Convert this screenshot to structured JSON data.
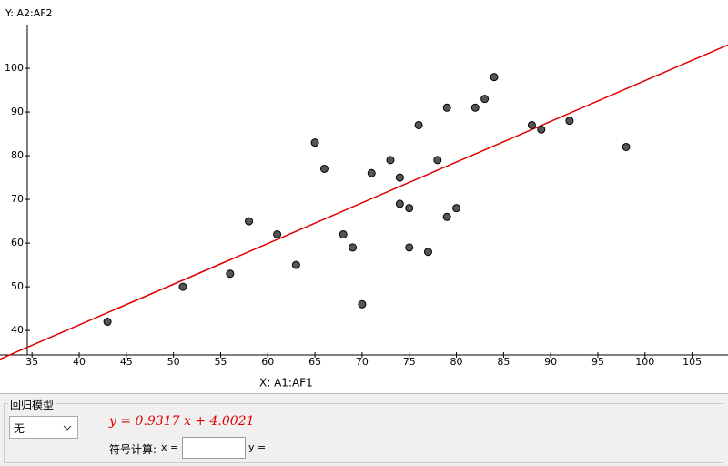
{
  "chart_data": {
    "type": "scatter",
    "y_label": "Y:  A2:AF2",
    "x_label": "X:  A1:AF1",
    "x": [
      43,
      51,
      56,
      58,
      61,
      63,
      65,
      66,
      68,
      69,
      70,
      71,
      73,
      74,
      74,
      75,
      75,
      76,
      77,
      78,
      79,
      79,
      80,
      82,
      83,
      84,
      88,
      89,
      92,
      98
    ],
    "values": [
      42,
      50,
      53,
      65,
      62,
      55,
      83,
      77,
      62,
      59,
      46,
      76,
      79,
      75,
      69,
      68,
      59,
      87,
      58,
      79,
      91,
      66,
      68,
      91,
      93,
      98,
      87,
      86,
      88,
      82
    ],
    "color": "#555555",
    "regression": {
      "label": "y = 0.9317 x + 4.0021",
      "slope": 0.9317,
      "intercept": 4.0021,
      "color": "#e00000"
    },
    "xlim": [
      34.5,
      108.8
    ],
    "ylim": [
      34.4,
      109.8
    ],
    "xticks": [
      35,
      40,
      45,
      50,
      55,
      60,
      65,
      70,
      75,
      80,
      85,
      90,
      95,
      100,
      105
    ],
    "yticks": [
      40,
      50,
      60,
      70,
      80,
      90,
      100
    ]
  },
  "panel": {
    "group_title": "回归模型",
    "model": "无",
    "symbolic_label": "符号计算:",
    "x_field": "x =",
    "y_field": "y ="
  }
}
